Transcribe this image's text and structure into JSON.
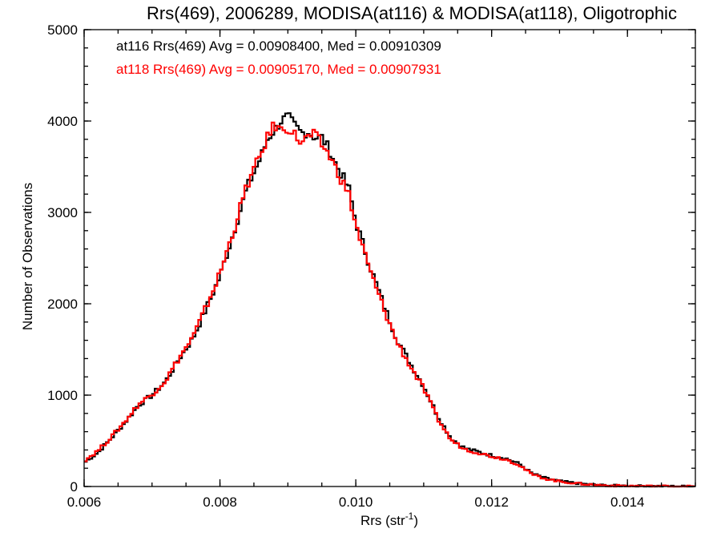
{
  "chart_data": {
    "type": "line",
    "step": true,
    "title": "Rrs(469), 2006289, MODISA(at116) & MODISA(at118), Oligotrophic",
    "xlabel": "Rrs (str",
    "xlabel_sup": "-1",
    "xlabel_close": ")",
    "ylabel": "Number of Observations",
    "xlim": [
      0.006,
      0.015
    ],
    "ylim": [
      0,
      5000
    ],
    "xticks": [
      0.006,
      0.008,
      0.01,
      0.012,
      0.014
    ],
    "xtick_labels": [
      "0.006",
      "0.008",
      "0.010",
      "0.012",
      "0.014"
    ],
    "yticks": [
      0,
      1000,
      2000,
      3000,
      4000,
      5000
    ],
    "ytick_labels": [
      "0",
      "1000",
      "2000",
      "3000",
      "4000",
      "5000"
    ],
    "legend_position": "top-left",
    "annotations": [
      {
        "text": "at116 Rrs(469) Avg = 0.00908400, Med = 0.00910309",
        "color": "#000000"
      },
      {
        "text": "at118 Rrs(469) Avg = 0.00905170, Med = 0.00907931",
        "color": "#ff0000"
      }
    ],
    "series": [
      {
        "color": "#000000",
        "points": [
          [
            0.006,
            260
          ],
          [
            0.0062,
            370
          ],
          [
            0.0064,
            530
          ],
          [
            0.0066,
            700
          ],
          [
            0.0068,
            890
          ],
          [
            0.007,
            1000
          ],
          [
            0.0072,
            1150
          ],
          [
            0.0074,
            1400
          ],
          [
            0.0076,
            1620
          ],
          [
            0.0078,
            1950
          ],
          [
            0.008,
            2300
          ],
          [
            0.0082,
            2780
          ],
          [
            0.0084,
            3270
          ],
          [
            0.0086,
            3600
          ],
          [
            0.0087,
            3800
          ],
          [
            0.0088,
            3900
          ],
          [
            0.0089,
            4000
          ],
          [
            0.009,
            4050
          ],
          [
            0.0091,
            3950
          ],
          [
            0.0092,
            3870
          ],
          [
            0.0093,
            3880
          ],
          [
            0.0094,
            3820
          ],
          [
            0.0095,
            3820
          ],
          [
            0.0096,
            3700
          ],
          [
            0.0097,
            3540
          ],
          [
            0.0098,
            3400
          ],
          [
            0.0099,
            3250
          ],
          [
            0.01,
            2900
          ],
          [
            0.0102,
            2430
          ],
          [
            0.0104,
            2010
          ],
          [
            0.0106,
            1620
          ],
          [
            0.0108,
            1350
          ],
          [
            0.011,
            1100
          ],
          [
            0.0112,
            780
          ],
          [
            0.0114,
            530
          ],
          [
            0.0116,
            420
          ],
          [
            0.0118,
            380
          ],
          [
            0.012,
            340
          ],
          [
            0.0122,
            310
          ],
          [
            0.0124,
            250
          ],
          [
            0.0126,
            140
          ],
          [
            0.0128,
            90
          ],
          [
            0.013,
            60
          ],
          [
            0.0132,
            40
          ],
          [
            0.0134,
            25
          ],
          [
            0.0136,
            15
          ],
          [
            0.0138,
            10
          ],
          [
            0.014,
            8
          ],
          [
            0.0142,
            5
          ],
          [
            0.0144,
            4
          ],
          [
            0.0146,
            3
          ],
          [
            0.0148,
            2
          ],
          [
            0.015,
            2
          ]
        ]
      },
      {
        "color": "#ff0000",
        "points": [
          [
            0.006,
            280
          ],
          [
            0.0062,
            390
          ],
          [
            0.0064,
            540
          ],
          [
            0.0066,
            710
          ],
          [
            0.0068,
            900
          ],
          [
            0.007,
            1010
          ],
          [
            0.0072,
            1160
          ],
          [
            0.0074,
            1410
          ],
          [
            0.0076,
            1630
          ],
          [
            0.0078,
            1970
          ],
          [
            0.008,
            2330
          ],
          [
            0.0082,
            2800
          ],
          [
            0.0084,
            3300
          ],
          [
            0.0086,
            3630
          ],
          [
            0.0087,
            3820
          ],
          [
            0.0088,
            3960
          ],
          [
            0.0089,
            3900
          ],
          [
            0.009,
            3930
          ],
          [
            0.0091,
            3850
          ],
          [
            0.0092,
            3760
          ],
          [
            0.0093,
            3830
          ],
          [
            0.0094,
            3850
          ],
          [
            0.0095,
            3740
          ],
          [
            0.0096,
            3640
          ],
          [
            0.0097,
            3490
          ],
          [
            0.0098,
            3340
          ],
          [
            0.0099,
            3190
          ],
          [
            0.01,
            2860
          ],
          [
            0.0102,
            2380
          ],
          [
            0.0104,
            1970
          ],
          [
            0.0106,
            1590
          ],
          [
            0.0108,
            1320
          ],
          [
            0.011,
            1070
          ],
          [
            0.0112,
            750
          ],
          [
            0.0114,
            510
          ],
          [
            0.0116,
            410
          ],
          [
            0.0118,
            370
          ],
          [
            0.012,
            330
          ],
          [
            0.0122,
            300
          ],
          [
            0.0124,
            240
          ],
          [
            0.0126,
            130
          ],
          [
            0.0128,
            85
          ],
          [
            0.013,
            55
          ],
          [
            0.0132,
            38
          ],
          [
            0.0134,
            24
          ],
          [
            0.0136,
            14
          ],
          [
            0.0138,
            9
          ],
          [
            0.014,
            7
          ],
          [
            0.0142,
            5
          ],
          [
            0.0144,
            4
          ],
          [
            0.0146,
            3
          ],
          [
            0.0148,
            2
          ],
          [
            0.015,
            2
          ]
        ]
      }
    ]
  }
}
